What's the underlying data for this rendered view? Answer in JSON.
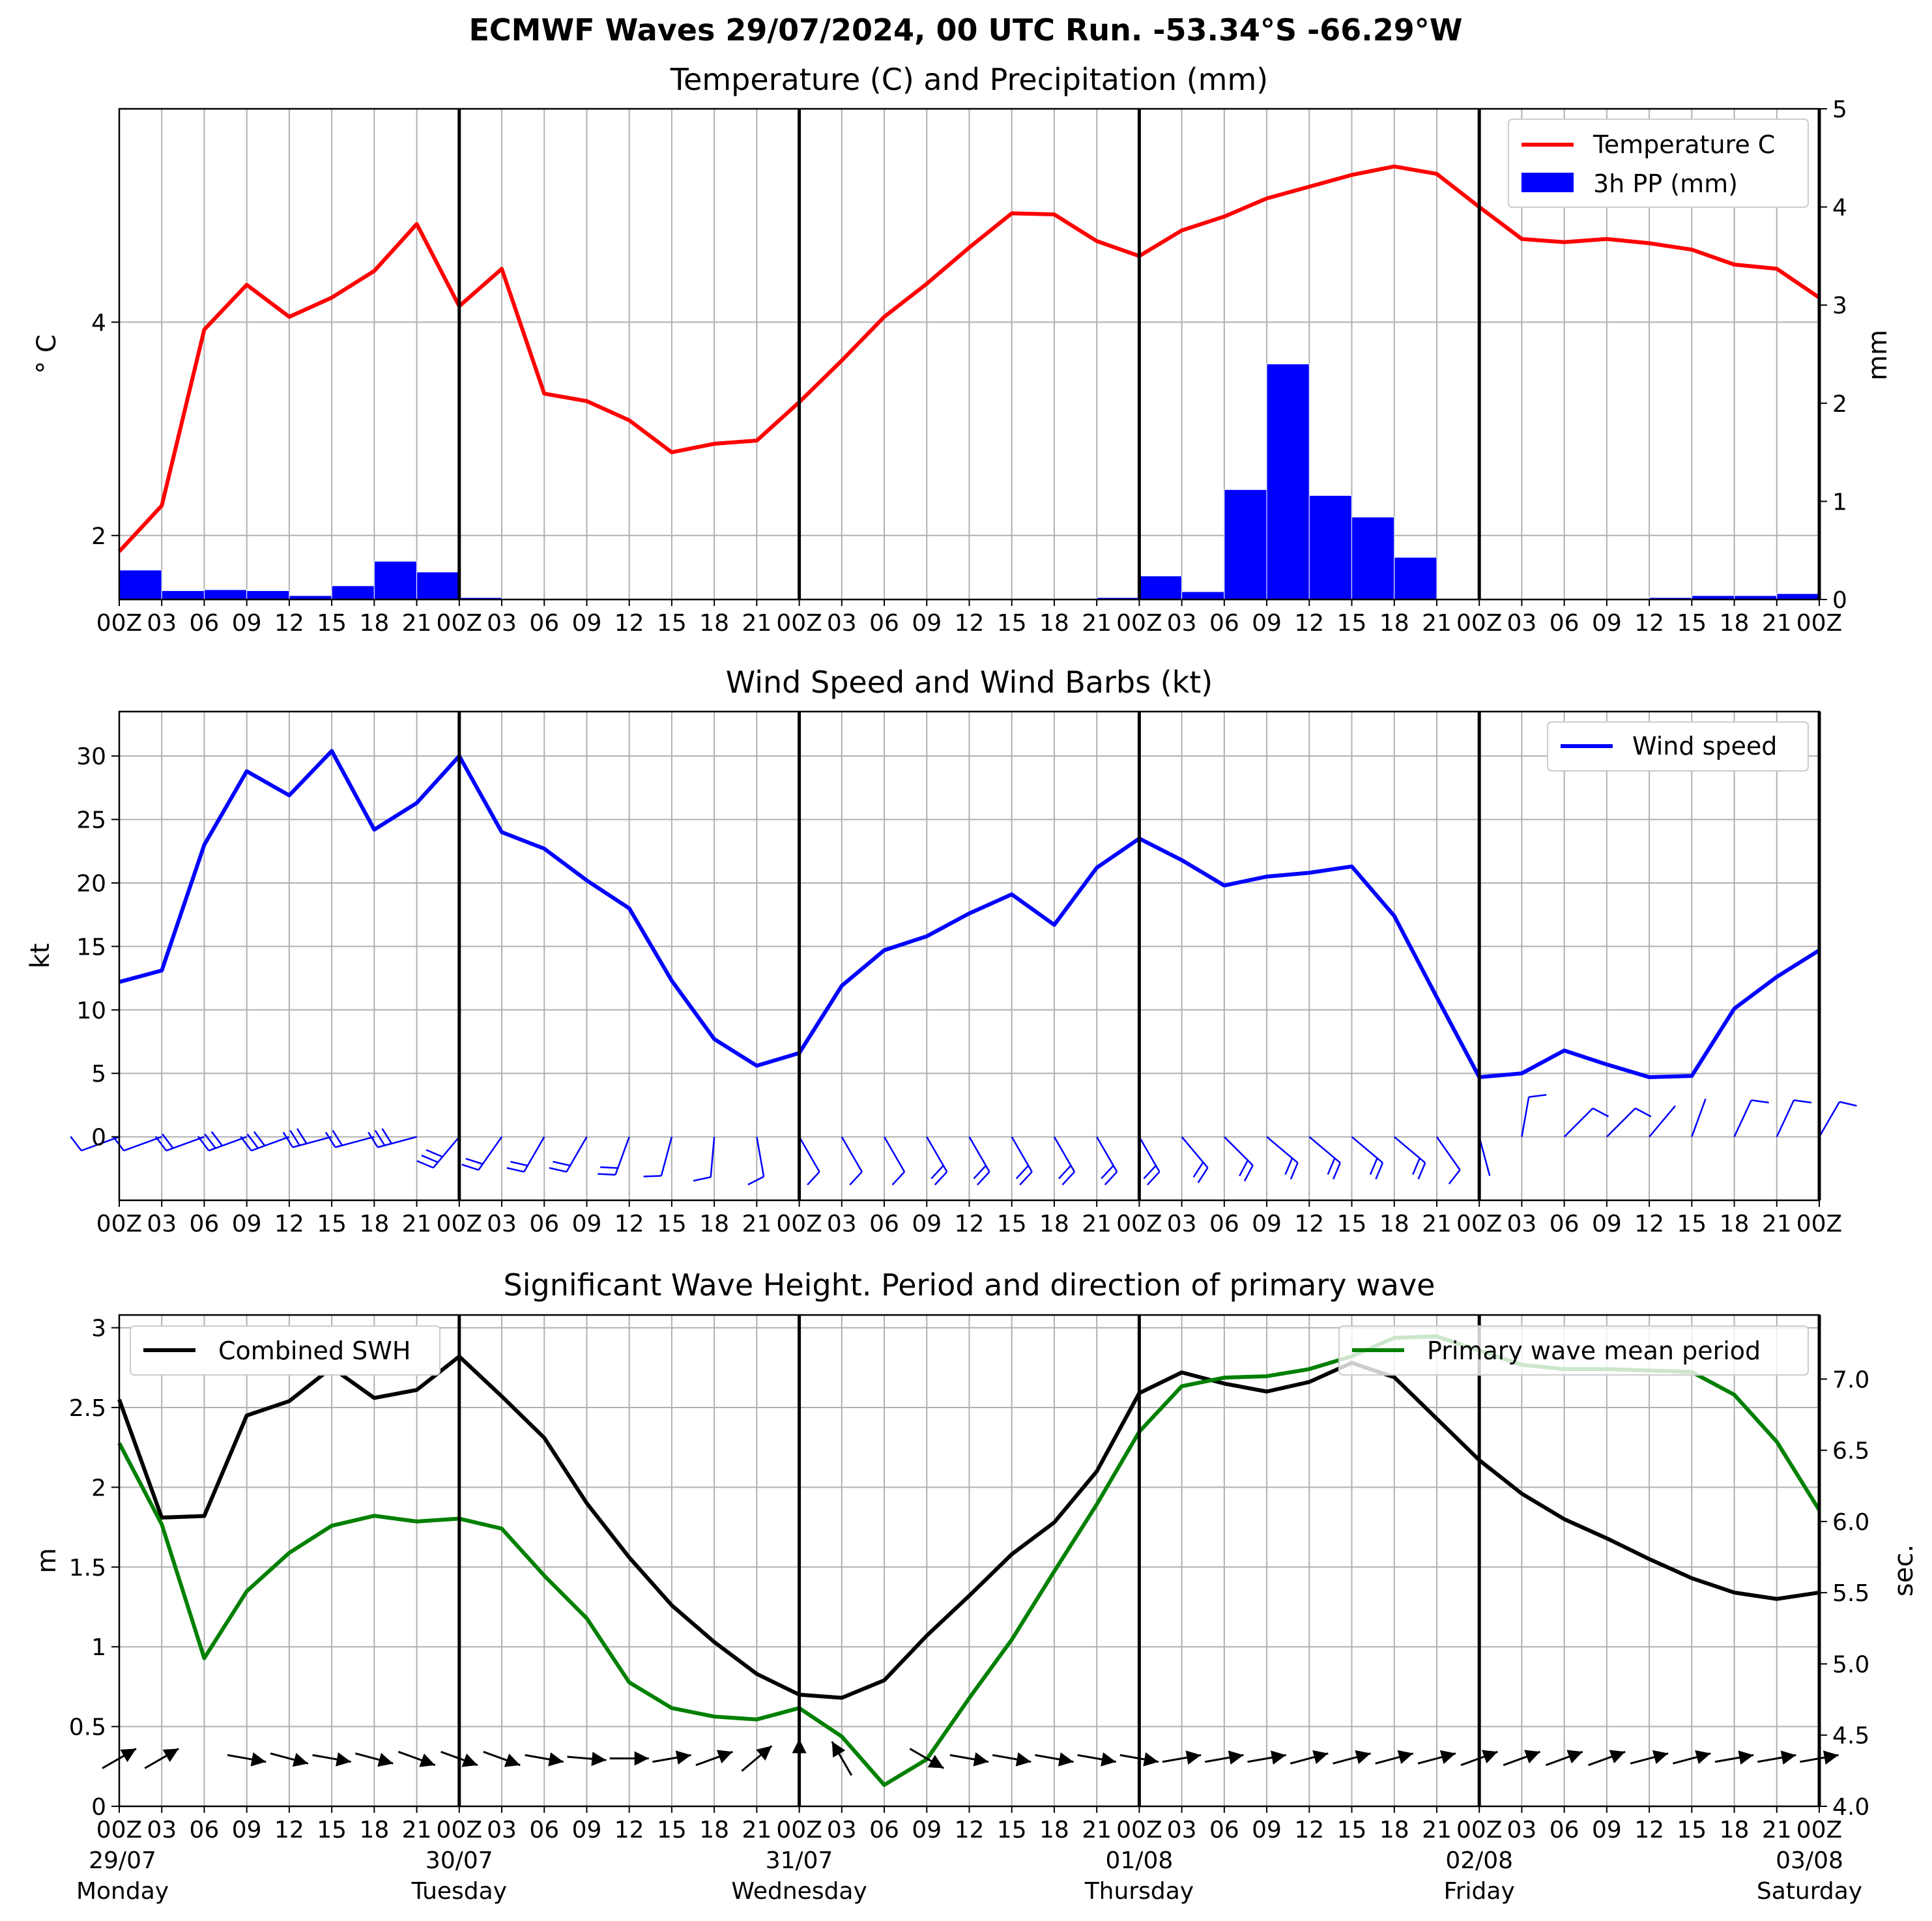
{
  "suptitle": "ECMWF Waves 29/07/2024, 00 UTC Run. -53.34°S -66.29°W",
  "time_ticks": [
    "00Z",
    "03",
    "06",
    "09",
    "12",
    "15",
    "18",
    "21",
    "00Z",
    "03",
    "06",
    "09",
    "12",
    "15",
    "18",
    "21",
    "00Z",
    "03",
    "06",
    "09",
    "12",
    "15",
    "18",
    "21",
    "00Z",
    "03",
    "06",
    "09",
    "12",
    "15",
    "18",
    "21",
    "00Z",
    "03",
    "06",
    "09",
    "12",
    "15",
    "18",
    "21",
    "00Z"
  ],
  "day_labels": [
    {
      "date": "29/07",
      "weekday": "Monday"
    },
    {
      "date": "30/07",
      "weekday": "Tuesday"
    },
    {
      "date": "31/07",
      "weekday": "Wednesday"
    },
    {
      "date": "01/08",
      "weekday": "Thursday"
    },
    {
      "date": "02/08",
      "weekday": "Friday"
    },
    {
      "date": "03/08",
      "weekday": "Saturday"
    }
  ],
  "colors": {
    "temperature": "#ff0000",
    "precip": "#0000ff",
    "wind": "#0000ff",
    "swh": "#000000",
    "period": "#008000",
    "grid": "#b0b0b0"
  },
  "chart_data": [
    {
      "type": "line",
      "title": "Temperature (C) and Precipitation (mm)",
      "ylabel": "° C",
      "ylabel_right": "mm",
      "ylim": [
        1.4,
        6.0
      ],
      "ylim_right": [
        0,
        5
      ],
      "yticks": [
        2,
        4
      ],
      "yticks_right": [
        0,
        1,
        2,
        3,
        4,
        5
      ],
      "legend_position": "top-right",
      "grid": true,
      "series": [
        {
          "name": "Temperature C",
          "axis": "left",
          "style": "line",
          "values": [
            1.85,
            2.28,
            3.93,
            4.35,
            4.05,
            4.23,
            4.48,
            4.92,
            4.15,
            4.5,
            3.33,
            3.26,
            3.08,
            2.78,
            2.86,
            2.89,
            3.25,
            3.64,
            4.05,
            4.36,
            4.7,
            5.02,
            5.01,
            4.76,
            4.62,
            4.86,
            4.99,
            5.16,
            5.27,
            5.38,
            5.46,
            5.39,
            5.08,
            4.78,
            4.75,
            4.78,
            4.74,
            4.68,
            4.54,
            4.5,
            4.23
          ]
        },
        {
          "name": "3h PP (mm)",
          "axis": "right",
          "style": "bar",
          "values": [
            null,
            0.3,
            0.09,
            0.1,
            0.09,
            0.04,
            0.14,
            0.39,
            0.28,
            0.02,
            0,
            0,
            0,
            0,
            0,
            0,
            0,
            0,
            0,
            0,
            0,
            0,
            0,
            0.01,
            0.02,
            0.24,
            0.08,
            1.12,
            2.4,
            1.06,
            0.84,
            0.43,
            0,
            0,
            0,
            0,
            0,
            0.02,
            0.04,
            0.04,
            0.06
          ]
        }
      ]
    },
    {
      "type": "line",
      "title": "Wind Speed and Wind Barbs (kt)",
      "ylabel": "kt",
      "ylim": [
        -5,
        33.5
      ],
      "yticks": [
        0,
        5,
        10,
        15,
        20,
        25,
        30
      ],
      "legend_position": "top-right",
      "grid": true,
      "series": [
        {
          "name": "Wind speed",
          "values": [
            12.2,
            13.1,
            23,
            28.8,
            26.9,
            30.4,
            24.2,
            26.3,
            30,
            24,
            22.7,
            20.2,
            18,
            12.3,
            7.7,
            5.6,
            6.6,
            11.9,
            14.7,
            15.8,
            17.6,
            19.1,
            16.7,
            21.2,
            23.5,
            21.8,
            19.8,
            20.5,
            20.8,
            21.3,
            17.4,
            11,
            4.7,
            5,
            6.8,
            5.7,
            4.7,
            4.8,
            10.1,
            12.6,
            14.7
          ]
        }
      ],
      "wind_barbs": {
        "note_from_figure": "barbs drawn along y=0",
        "direction_from_deg": [
          250,
          250,
          250,
          250,
          250,
          255,
          255,
          255,
          220,
          215,
          210,
          210,
          200,
          195,
          185,
          170,
          150,
          150,
          150,
          150,
          150,
          150,
          150,
          150,
          150,
          140,
          135,
          130,
          130,
          130,
          130,
          145,
          165,
          10,
          45,
          45,
          40,
          20,
          25,
          25,
          30
        ]
      }
    },
    {
      "type": "line",
      "title": "Significant Wave Height. Period and direction of primary wave",
      "ylabel": "m",
      "ylabel_right": "sec.",
      "ylim": [
        0,
        3.08
      ],
      "ylim_right": [
        4.0,
        7.45
      ],
      "yticks": [
        0.0,
        0.5,
        1.0,
        1.5,
        2.0,
        2.5,
        3.0
      ],
      "yticks_right": [
        4.0,
        4.5,
        5.0,
        5.5,
        6.0,
        6.5,
        7.0
      ],
      "legend_position": "top",
      "grid": true,
      "series": [
        {
          "name": "Combined SWH",
          "axis": "left",
          "values": [
            2.55,
            1.81,
            1.82,
            2.45,
            2.54,
            2.75,
            2.56,
            2.61,
            2.82,
            2.57,
            2.31,
            1.9,
            1.56,
            1.26,
            1.03,
            0.83,
            0.7,
            0.68,
            0.79,
            1.07,
            1.32,
            1.58,
            1.78,
            2.1,
            2.59,
            2.72,
            2.65,
            2.6,
            2.66,
            2.78,
            2.69,
            2.43,
            2.17,
            1.96,
            1.8,
            1.68,
            1.55,
            1.43,
            1.34,
            1.3,
            1.34
          ]
        },
        {
          "name": "Primary wave mean period",
          "axis": "right",
          "values": [
            6.55,
            5.98,
            5.04,
            5.51,
            5.78,
            5.97,
            6.04,
            6.0,
            6.02,
            5.95,
            5.62,
            5.32,
            4.87,
            4.69,
            4.63,
            4.61,
            4.69,
            4.49,
            4.15,
            4.33,
            4.76,
            5.17,
            5.65,
            6.12,
            6.63,
            6.95,
            7.01,
            7.02,
            7.07,
            7.16,
            7.29,
            7.3,
            7.2,
            7.1,
            7.07,
            7.07,
            7.06,
            7.05,
            6.89,
            6.56,
            6.08
          ]
        }
      ],
      "wave_direction_arrows": {
        "note_from_figure": "arrows drawn along 0.3 m",
        "heading_deg": [
          60,
          60,
          null,
          100,
          105,
          100,
          105,
          110,
          110,
          110,
          100,
          95,
          90,
          80,
          70,
          50,
          0,
          330,
          null,
          120,
          100,
          100,
          100,
          100,
          100,
          80,
          80,
          80,
          75,
          75,
          75,
          75,
          70,
          70,
          70,
          70,
          75,
          75,
          80,
          80,
          80
        ]
      }
    }
  ]
}
